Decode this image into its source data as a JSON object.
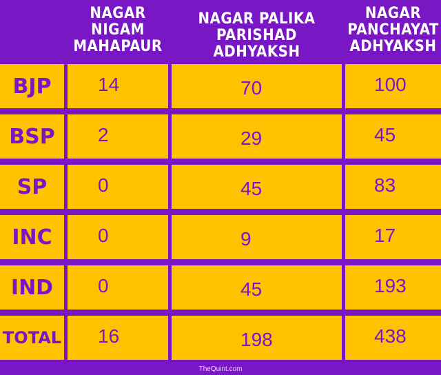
{
  "chart_data": {
    "type": "table",
    "columns": [
      "",
      "NAGAR NIGAM\nMAHAPAUR",
      "NAGAR PALIKA PARISHAD\nADHYAKSH",
      "NAGAR\nPANCHAYAT\nADHYAKSH"
    ],
    "rows": [
      {
        "party": "BJP",
        "values": [
          "14",
          "70",
          "100"
        ]
      },
      {
        "party": "BSP",
        "values": [
          "2",
          "29",
          "45"
        ]
      },
      {
        "party": "SP",
        "values": [
          "0",
          "45",
          "83"
        ]
      },
      {
        "party": "INC",
        "values": [
          "0",
          "9",
          "17"
        ]
      },
      {
        "party": "IND",
        "values": [
          "0",
          "45",
          "193"
        ]
      },
      {
        "party": "TOTAL",
        "values": [
          "16",
          "198",
          "438"
        ]
      }
    ],
    "colors": {
      "background": "#7a17c4",
      "cell": "#ffc200",
      "header_text": "#ffffff",
      "cell_text": "#7a17c4"
    }
  },
  "credit": "TheQuint.com"
}
